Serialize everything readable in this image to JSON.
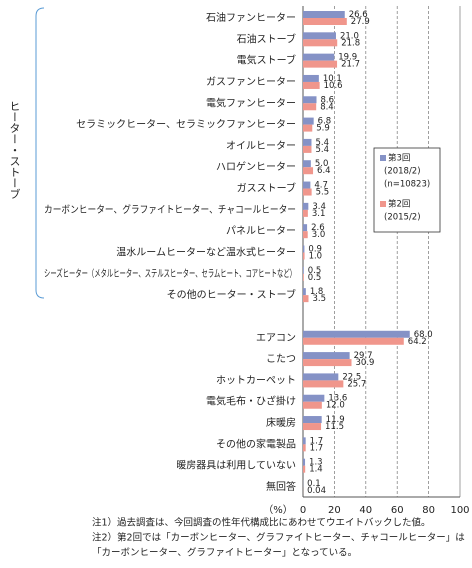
{
  "chart_data": {
    "type": "bar",
    "orientation": "horizontal",
    "group_label": "ヒーター・ストーブ",
    "x_label": "（%）",
    "categories": [
      "石油ファンヒーター",
      "石油ストーブ",
      "電気ストーブ",
      "ガスファンヒーター",
      "電気ファンヒーター",
      "セラミックヒーター、セラミックファンヒーター",
      "オイルヒーター",
      "ハロゲンヒーター",
      "ガスストーブ",
      "カーボンヒーター、グラファイトヒーター、チャコールヒーター",
      "パネルヒーター",
      "温水ルームヒーターなど温水式ヒーター",
      "シーズヒーター（メタルヒーター、ステルスヒーター、セラムヒート、コアヒートなど）",
      "その他のヒーター・ストーブ",
      null,
      "エアコン",
      "こたつ",
      "ホットカーペット",
      "電気毛布・ひざ掛け",
      "床暖房",
      "その他の家電製品",
      "暖房器具は利用していない",
      "無回答"
    ],
    "series": [
      {
        "name": "第3回",
        "period": "(2018/2)",
        "n": "(n=10823)",
        "color": "#8592c6",
        "values": [
          26.6,
          21.0,
          19.9,
          10.1,
          8.6,
          6.8,
          5.4,
          5.0,
          4.7,
          3.4,
          2.6,
          0.9,
          0.5,
          1.8,
          null,
          68.0,
          29.7,
          22.5,
          13.6,
          11.9,
          1.7,
          1.3,
          0.1
        ],
        "value_labels": [
          "26.6",
          "21.0",
          "19.9",
          "10.1",
          "8.6",
          "6.8",
          "5.4",
          "5.0",
          "4.7",
          "3.4",
          "2.6",
          "0.9",
          "0.5",
          "1.8",
          null,
          "68.0",
          "29.7",
          "22.5",
          "13.6",
          "11.9",
          "1.7",
          "1.3",
          "0.1"
        ]
      },
      {
        "name": "第2回",
        "period": "(2015/2)",
        "color": "#f0968c",
        "values": [
          27.9,
          21.8,
          21.7,
          10.6,
          8.4,
          5.9,
          5.4,
          6.4,
          5.5,
          3.1,
          3.0,
          1.0,
          0.5,
          3.5,
          null,
          64.2,
          30.9,
          25.7,
          12.0,
          11.5,
          1.7,
          1.4,
          0.04
        ],
        "value_labels": [
          "27.9",
          "21.8",
          "21.7",
          "10.6",
          "8.4",
          "5.9",
          "5.4",
          "6.4",
          "5.5",
          "3.1",
          "3.0",
          "1.0",
          "0.5",
          "3.5",
          null,
          "64.2",
          "30.9",
          "25.7",
          "12.0",
          "11.5",
          "1.7",
          "1.4",
          "0.04"
        ]
      }
    ],
    "xlim": [
      0,
      100
    ],
    "xticks": [
      0,
      20,
      40,
      60,
      80,
      100
    ],
    "grid": true,
    "notes": [
      "注1）過去調査は、今回調査の性年代構成比にあわせてウエイトバックした値。",
      "注2）第2回では「カーボンヒーター、グラファイトヒーター、チャコールヒーター」は",
      "「カーボンヒーター、グラファイトヒーター」となっている。"
    ]
  }
}
